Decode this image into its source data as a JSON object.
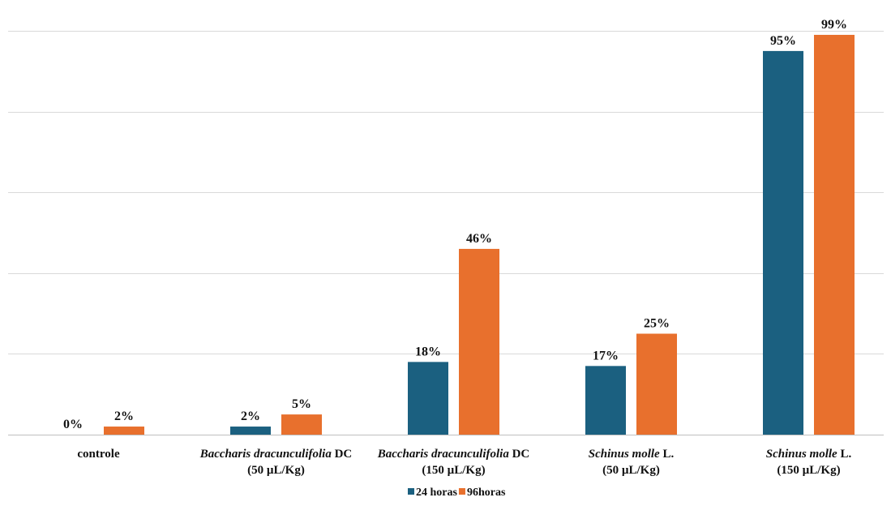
{
  "chart_data": {
    "type": "bar",
    "categories": [
      {
        "parts": [
          {
            "text": "controle",
            "italic": false
          }
        ],
        "line2": ""
      },
      {
        "parts": [
          {
            "text": "Baccharis dracunculifolia",
            "italic": true
          },
          {
            "text": " DC",
            "italic": false
          }
        ],
        "line2": "(50 µL/Kg)"
      },
      {
        "parts": [
          {
            "text": "Baccharis dracunculifolia",
            "italic": true
          },
          {
            "text": " DC",
            "italic": false
          }
        ],
        "line2": "(150 µL/Kg)"
      },
      {
        "parts": [
          {
            "text": "Schinus molle",
            "italic": true
          },
          {
            "text": " L.",
            "italic": false
          }
        ],
        "line2": "(50 µL/Kg)"
      },
      {
        "parts": [
          {
            "text": "Schinus molle",
            "italic": true
          },
          {
            "text": " L.",
            "italic": false
          }
        ],
        "line2": "(150 µL/Kg)"
      }
    ],
    "series": [
      {
        "name": "24 horas",
        "color": "#1b6080",
        "values": [
          0,
          2,
          18,
          17,
          95
        ],
        "labels": [
          "0%",
          "2%",
          "18%",
          "17%",
          "95%"
        ]
      },
      {
        "name": "96horas",
        "color": "#e8702d",
        "values": [
          2,
          5,
          46,
          25,
          99
        ],
        "labels": [
          "2%",
          "5%",
          "46%",
          "25%",
          "99%"
        ]
      }
    ],
    "ylim": [
      0,
      100
    ],
    "gridlines": [
      0,
      20,
      40,
      60,
      80,
      100
    ],
    "grid": true,
    "legend_position": "bottom",
    "colors": {
      "grid": "#d9d9d9",
      "axis": "#bfbfbf"
    }
  }
}
